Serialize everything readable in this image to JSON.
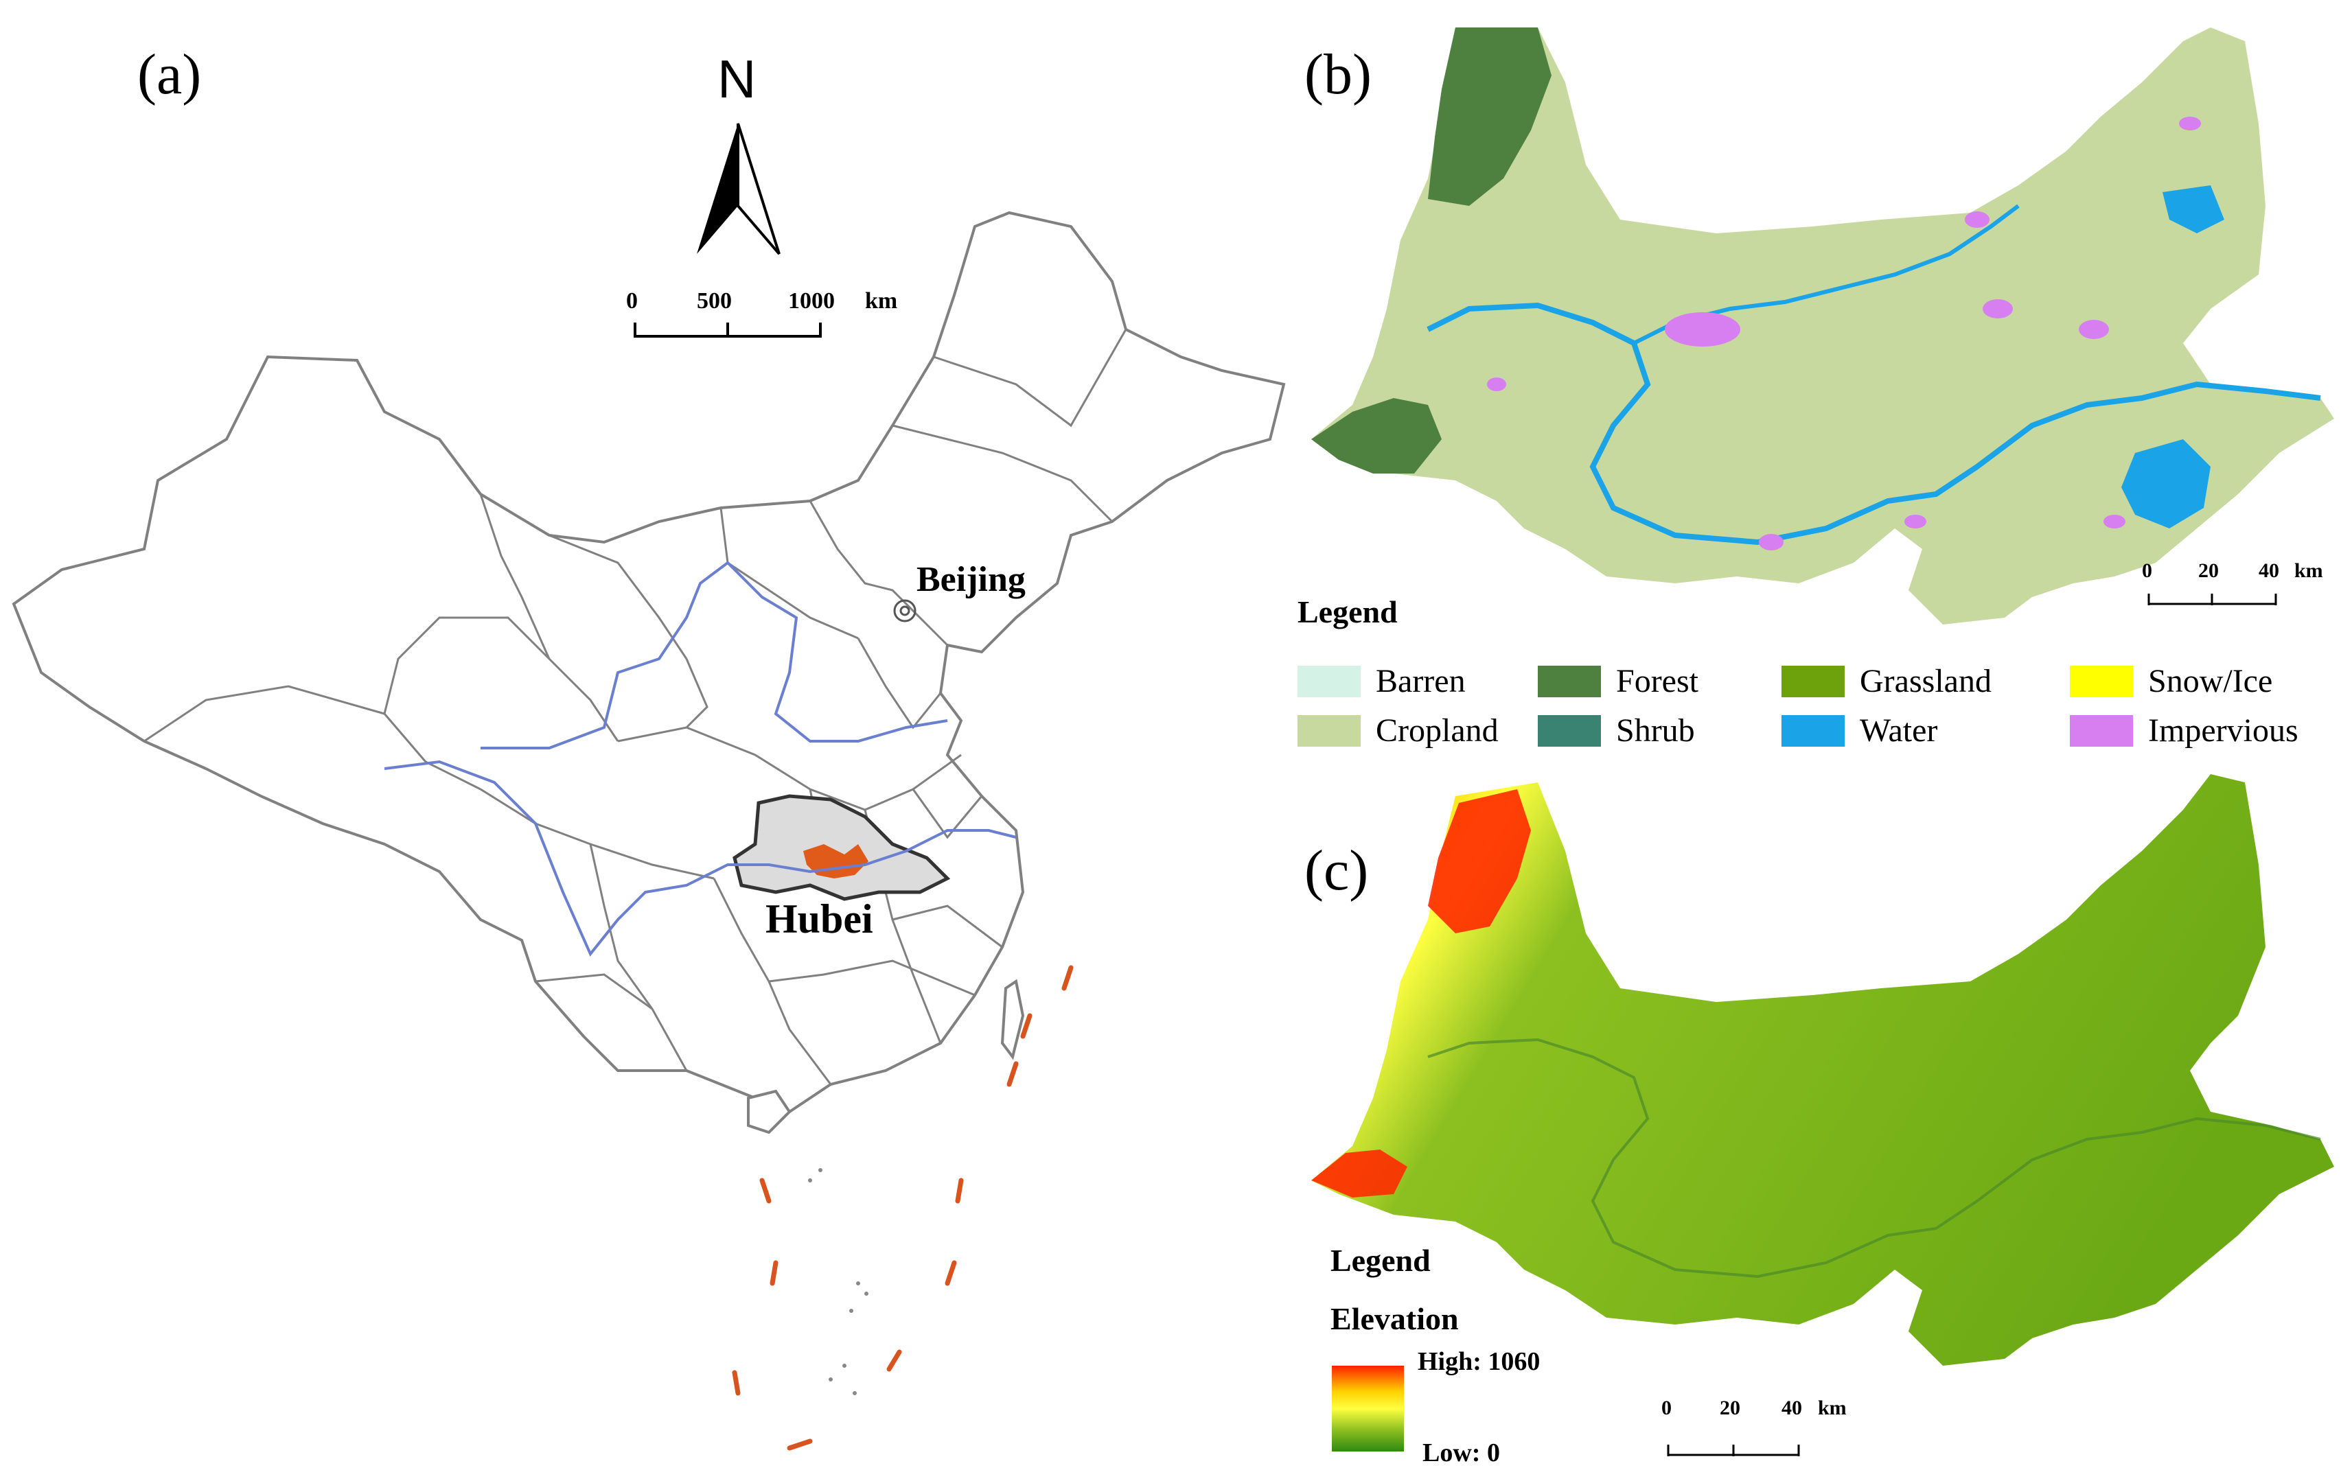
{
  "panel_a": {
    "letter": "(a)",
    "north": "N",
    "scale": {
      "ticks": [
        "0",
        "500",
        "1000"
      ],
      "unit": "km"
    },
    "labels": {
      "beijing": "Beijing",
      "hubei": "Hubei"
    },
    "colors": {
      "boundary": "#808080",
      "river": "#6a7fd0",
      "hubei_fill": "#dcdcdc",
      "study_area": "#e05a1a",
      "dashes": "#d9531e"
    }
  },
  "panel_b": {
    "letter": "(b)",
    "scale": {
      "ticks": [
        "0",
        "20",
        "40"
      ],
      "unit": "km"
    },
    "legend_title": "Legend",
    "legend": [
      {
        "name": "Barren",
        "color": "#d4f2e6"
      },
      {
        "name": "Forest",
        "color": "#4e8040"
      },
      {
        "name": "Grassland",
        "color": "#6ea20c"
      },
      {
        "name": "Snow/Ice",
        "color": "#ffff00"
      },
      {
        "name": "Cropland",
        "color": "#c8d9a0"
      },
      {
        "name": "Shrub",
        "color": "#3a8272"
      },
      {
        "name": "Water",
        "color": "#1aa3e6"
      },
      {
        "name": "Impervious",
        "color": "#d77ef0"
      }
    ]
  },
  "panel_c": {
    "letter": "(c)",
    "legend_title": "Legend",
    "elevation_title": "Elevation",
    "high_label": "High: 1060",
    "low_label": "Low: 0",
    "scale": {
      "ticks": [
        "0",
        "20",
        "40"
      ],
      "unit": "km"
    },
    "ramp": [
      "#ff2000",
      "#ffd000",
      "#ffff40",
      "#8cc020",
      "#2e8a10"
    ]
  }
}
